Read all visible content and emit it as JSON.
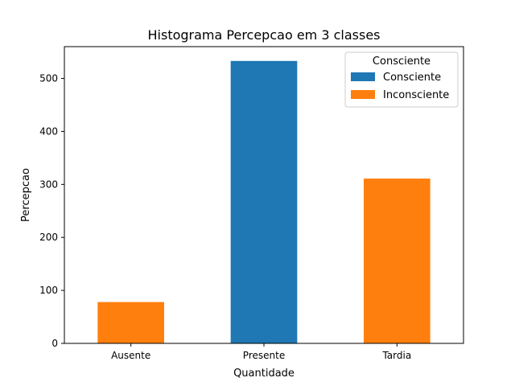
{
  "chart_data": {
    "type": "bar",
    "title": "Histograma Percepcao em 3 classes",
    "xlabel": "Quantidade",
    "ylabel": "Percepcao",
    "categories": [
      "Ausente",
      "Presente",
      "Tardia"
    ],
    "series": [
      {
        "name": "Consciente",
        "color": "#1f77b4",
        "values": [
          0,
          533,
          0
        ]
      },
      {
        "name": "Inconsciente",
        "color": "#ff7f0e",
        "values": [
          78,
          0,
          311
        ]
      }
    ],
    "ylim": [
      0,
      560
    ],
    "yticks": [
      0,
      100,
      200,
      300,
      400,
      500
    ],
    "grid": false,
    "legend": {
      "title": "Consciente",
      "placement": "top-right"
    }
  }
}
